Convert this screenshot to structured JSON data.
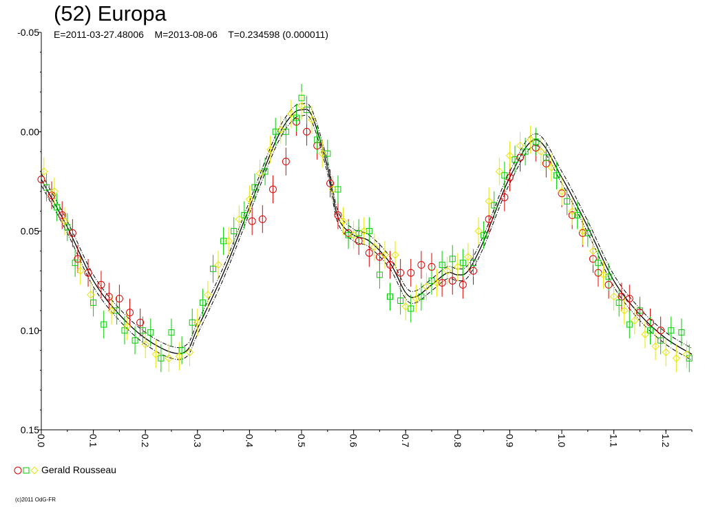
{
  "header": {
    "title": "(52) Europa",
    "subtitle": "E=2011-03-27.48006    M=2013-08-06    T=0.234598 (0.000011)"
  },
  "legend": {
    "label": "Gerald Rousseau"
  },
  "footer": {
    "copyright": "(c)2011 OdG-FR"
  },
  "colors": {
    "red": "#dd0000",
    "green": "#00cc00",
    "yellow": "#ffff00",
    "axis": "#000000"
  },
  "chart_data": {
    "type": "scatter",
    "title": "(52) Europa",
    "xlabel": "",
    "ylabel": "",
    "xlim": [
      0.0,
      1.25
    ],
    "ylim": [
      -0.05,
      0.15
    ],
    "y_inverted": true,
    "x_ticks": [
      "0.0",
      "0.1",
      "0.2",
      "0.3",
      "0.4",
      "0.5",
      "0.6",
      "0.7",
      "0.8",
      "0.9",
      "1.0",
      "1.1",
      "1.2"
    ],
    "y_ticks": [
      "-0.05",
      "0.00",
      "0.05",
      "0.10",
      "0.15"
    ],
    "grid": false,
    "legend_position": "bottom-left",
    "model_curve": {
      "x": [
        0.0,
        0.05,
        0.1,
        0.15,
        0.2,
        0.25,
        0.28,
        0.3,
        0.35,
        0.4,
        0.45,
        0.48,
        0.5,
        0.52,
        0.55,
        0.57,
        0.6,
        0.63,
        0.67,
        0.7,
        0.72,
        0.75,
        0.78,
        0.8,
        0.82,
        0.85,
        0.9,
        0.95,
        1.0,
        1.05,
        1.1,
        1.15,
        1.2,
        1.25
      ],
      "y": [
        0.024,
        0.048,
        0.075,
        0.092,
        0.104,
        0.111,
        0.11,
        0.099,
        0.071,
        0.038,
        0.005,
        -0.008,
        -0.011,
        -0.008,
        0.018,
        0.043,
        0.052,
        0.055,
        0.066,
        0.081,
        0.083,
        0.077,
        0.071,
        0.072,
        0.07,
        0.055,
        0.023,
        0.004,
        0.023,
        0.048,
        0.075,
        0.092,
        0.104,
        0.112
      ],
      "band": 0.003
    },
    "series": [
      {
        "name": "Gerald Rousseau",
        "marker": "circle",
        "color": "#dd0000",
        "x": [
          0.0,
          0.02,
          0.04,
          0.06,
          0.07,
          0.09,
          0.115,
          0.13,
          0.15,
          0.17,
          0.19,
          0.405,
          0.425,
          0.445,
          0.47,
          0.49,
          0.51,
          0.53,
          0.555,
          0.57,
          0.59,
          0.61,
          0.63,
          0.65,
          0.67,
          0.69,
          0.71,
          0.73,
          0.75,
          0.77,
          0.79,
          0.81,
          0.83,
          0.86,
          0.89,
          0.9,
          0.92,
          0.95,
          0.97,
          1.0,
          1.02,
          1.04,
          1.06,
          1.07,
          1.09,
          1.115,
          1.13,
          1.15,
          1.17,
          1.19
        ],
        "y": [
          0.024,
          0.032,
          0.042,
          0.051,
          0.064,
          0.071,
          0.077,
          0.083,
          0.084,
          0.091,
          0.096,
          0.045,
          0.044,
          0.029,
          0.015,
          -0.005,
          0.0,
          0.007,
          0.026,
          0.042,
          0.051,
          0.055,
          0.061,
          0.063,
          0.067,
          0.071,
          0.071,
          0.067,
          0.068,
          0.076,
          0.075,
          0.077,
          0.07,
          0.044,
          0.033,
          0.023,
          0.013,
          0.008,
          0.016,
          0.031,
          0.042,
          0.051,
          0.064,
          0.071,
          0.077,
          0.083,
          0.084,
          0.091,
          0.096,
          0.1
        ],
        "yerr": 0.007
      },
      {
        "name": "",
        "marker": "square",
        "color": "#00cc00",
        "x": [
          0.01,
          0.03,
          0.05,
          0.065,
          0.1,
          0.12,
          0.145,
          0.16,
          0.18,
          0.195,
          0.21,
          0.23,
          0.25,
          0.27,
          0.29,
          0.31,
          0.33,
          0.35,
          0.37,
          0.39,
          0.41,
          0.43,
          0.45,
          0.47,
          0.49,
          0.5,
          0.51,
          0.53,
          0.55,
          0.57,
          0.59,
          0.61,
          0.63,
          0.65,
          0.67,
          0.69,
          0.71,
          0.73,
          0.75,
          0.77,
          0.79,
          0.81,
          0.83,
          0.85,
          0.87,
          0.89,
          0.91,
          0.93,
          0.95,
          0.97,
          0.99,
          1.01,
          1.03,
          1.05,
          1.07,
          1.09,
          1.11,
          1.13,
          1.15,
          1.17,
          1.19,
          1.21,
          1.23,
          1.245
        ],
        "y": [
          0.028,
          0.038,
          0.048,
          0.066,
          0.086,
          0.097,
          0.09,
          0.1,
          0.105,
          0.1,
          0.101,
          0.114,
          0.101,
          0.11,
          0.096,
          0.086,
          0.069,
          0.055,
          0.05,
          0.042,
          0.028,
          0.02,
          0.0,
          0.0,
          -0.007,
          -0.017,
          -0.011,
          0.004,
          0.011,
          0.029,
          0.052,
          0.051,
          0.05,
          0.072,
          0.083,
          0.085,
          0.089,
          0.083,
          0.075,
          0.067,
          0.064,
          0.066,
          0.066,
          0.052,
          0.037,
          0.022,
          0.014,
          0.01,
          0.005,
          0.013,
          0.022,
          0.035,
          0.042,
          0.051,
          0.066,
          0.073,
          0.086,
          0.097,
          0.09,
          0.1,
          0.105,
          0.1,
          0.101,
          0.114
        ],
        "yerr": 0.007
      },
      {
        "name": "",
        "marker": "diamond",
        "color": "#ffff00",
        "x": [
          0.005,
          0.025,
          0.045,
          0.075,
          0.095,
          0.135,
          0.165,
          0.2,
          0.22,
          0.245,
          0.265,
          0.285,
          0.3,
          0.32,
          0.34,
          0.36,
          0.38,
          0.4,
          0.42,
          0.44,
          0.46,
          0.48,
          0.5,
          0.52,
          0.54,
          0.56,
          0.58,
          0.6,
          0.62,
          0.64,
          0.66,
          0.68,
          0.7,
          0.72,
          0.74,
          0.76,
          0.78,
          0.8,
          0.82,
          0.84,
          0.86,
          0.88,
          0.9,
          0.92,
          0.94,
          0.96,
          0.98,
          1.0,
          1.02,
          1.04,
          1.06,
          1.08,
          1.1,
          1.12,
          1.14,
          1.16,
          1.18,
          1.2,
          1.22,
          1.24
        ],
        "y": [
          0.02,
          0.03,
          0.045,
          0.07,
          0.082,
          0.09,
          0.098,
          0.107,
          0.112,
          0.114,
          0.113,
          0.111,
          0.096,
          0.082,
          0.067,
          0.055,
          0.044,
          0.034,
          0.021,
          0.009,
          -0.001,
          -0.009,
          -0.013,
          -0.006,
          0.011,
          0.029,
          0.045,
          0.052,
          0.05,
          0.058,
          0.062,
          0.062,
          0.088,
          0.084,
          0.078,
          0.076,
          0.07,
          0.068,
          0.063,
          0.05,
          0.035,
          0.02,
          0.012,
          0.007,
          0.004,
          0.01,
          0.018,
          0.03,
          0.04,
          0.05,
          0.06,
          0.072,
          0.083,
          0.09,
          0.095,
          0.102,
          0.108,
          0.111,
          0.114,
          0.112
        ],
        "yerr": 0.007
      }
    ]
  }
}
